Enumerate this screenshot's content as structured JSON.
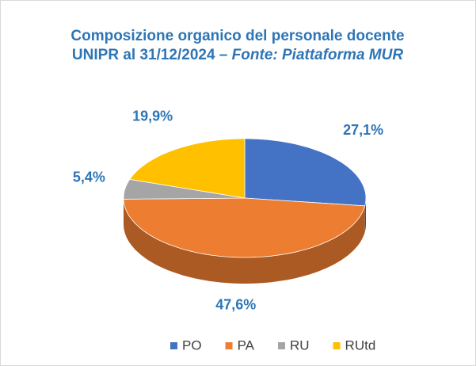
{
  "chart_data": {
    "type": "pie3d",
    "title": "Composizione organico del personale docente UNIPR al 31/12/2024 –",
    "source": "Fonte: Piattaforma MUR",
    "categories": [
      "PO",
      "PA",
      "RU",
      "RUtd"
    ],
    "values": [
      27.1,
      47.6,
      5.4,
      19.9
    ],
    "value_labels": [
      "27,1%",
      "47,6%",
      "5,4%",
      "19,9%"
    ],
    "colors": [
      "#4472c4",
      "#ed7d31",
      "#a5a5a5",
      "#ffc000"
    ],
    "legend": "bottom"
  }
}
